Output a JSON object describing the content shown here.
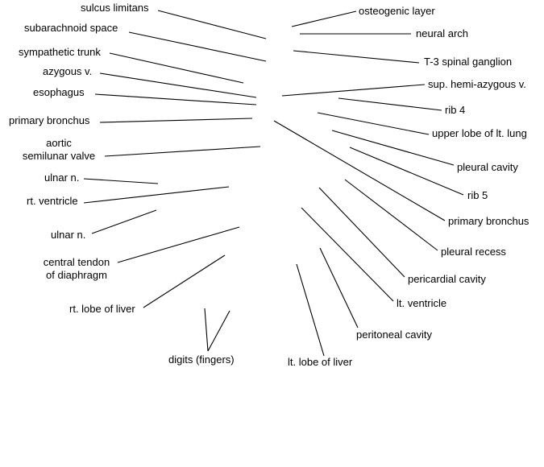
{
  "diagram": {
    "labels": {
      "sulcus_limitans": "sulcus limitans",
      "subarachnoid_space": "subarachnoid space",
      "sympathetic_trunk": "sympathetic trunk",
      "azygous_v": "azygous v.",
      "esophagus": "esophagus",
      "primary_bronchus_left": "primary bronchus",
      "aortic_line1": "aortic",
      "aortic_line2": "semilunar valve",
      "ulnar_n_upper": "ulnar n.",
      "rt_ventricle": "rt. ventricle",
      "ulnar_n_lower": "ulnar n.",
      "central_tendon_line1": "central tendon",
      "central_tendon_line2": "of diaphragm",
      "rt_lobe_of_liver": "rt. lobe of liver",
      "digits": "digits (fingers)",
      "lt_lobe_of_liver": "lt. lobe of liver",
      "osteogenic_layer": "osteogenic layer",
      "neural_arch": "neural arch",
      "t3_spinal_ganglion": "T-3 spinal ganglion",
      "sup_hemi_azygous_v": "sup. hemi-azygous v.",
      "rib_4": "rib 4",
      "upper_lobe_lt_lung": "upper lobe of lt. lung",
      "pleural_cavity": "pleural cavity",
      "rib_5": "rib 5",
      "primary_bronchus_right": "primary bronchus",
      "pleural_recess": "pleural recess",
      "pericardial_cavity": "pericardial cavity",
      "lt_ventricle": "lt. ventricle",
      "peritoneal_cavity": "peritoneal cavity"
    }
  }
}
